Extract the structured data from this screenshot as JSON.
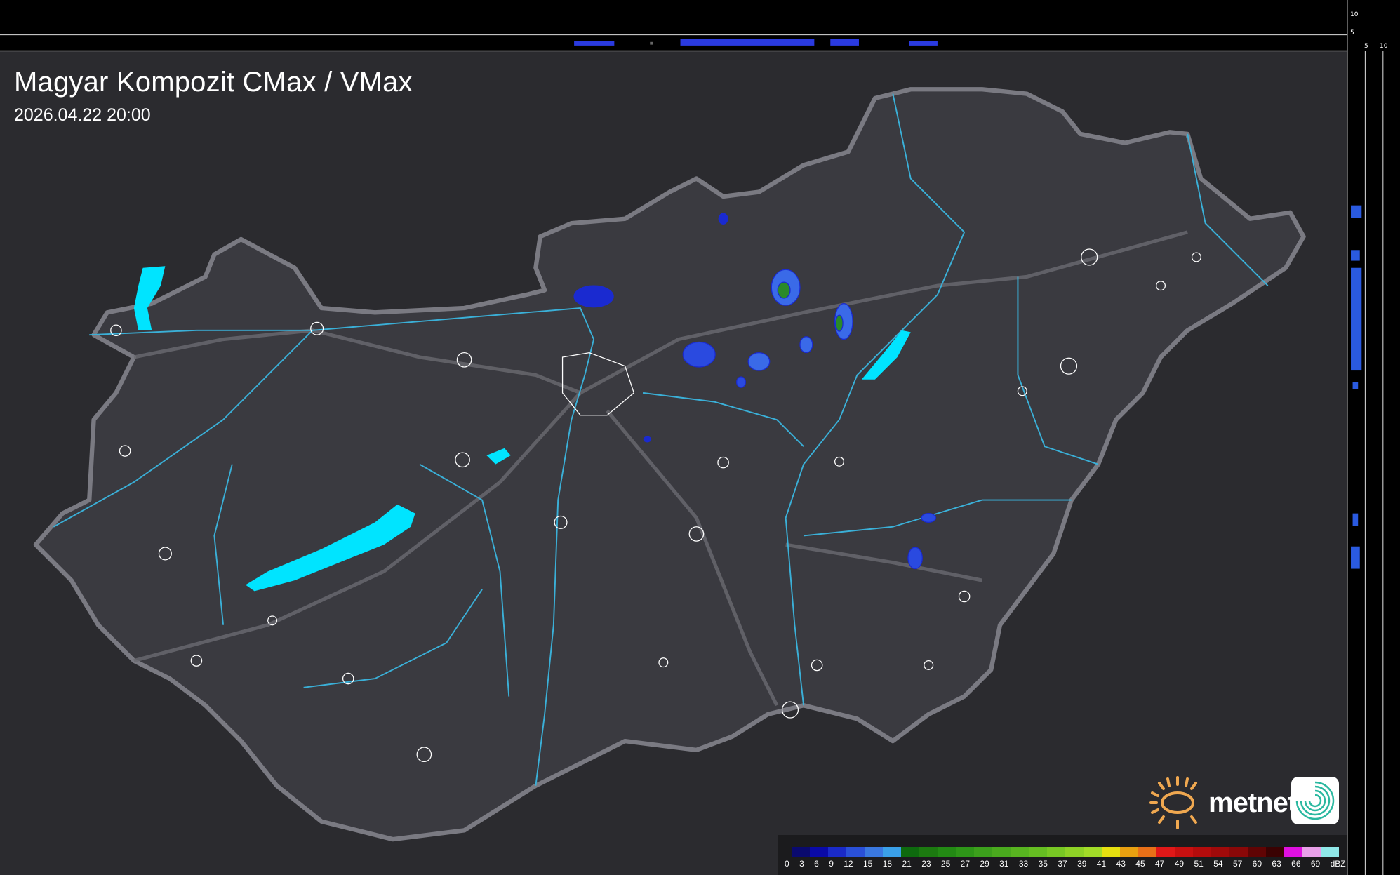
{
  "header": {
    "title": "Magyar Kompozit CMax / VMax",
    "timestamp": "2026.04.22 20:00"
  },
  "side_profiles": {
    "top_axis_labels": [
      "10",
      "5"
    ],
    "right_axis_labels": [
      "5",
      "10"
    ]
  },
  "legend": {
    "unit": "dBZ",
    "labels": [
      "0",
      "3",
      "6",
      "9",
      "12",
      "15",
      "18",
      "21",
      "23",
      "25",
      "27",
      "29",
      "31",
      "33",
      "35",
      "37",
      "39",
      "41",
      "43",
      "45",
      "47",
      "49",
      "51",
      "54",
      "57",
      "60",
      "63",
      "66",
      "69"
    ],
    "colors": [
      "#0a0a6e",
      "#0a0aa8",
      "#1a2ac8",
      "#2a50d8",
      "#3a78e0",
      "#3aa0e8",
      "#0e6a0e",
      "#1c7a10",
      "#238a14",
      "#2e9618",
      "#3ca01c",
      "#4aaa1e",
      "#58b420",
      "#66be22",
      "#78c824",
      "#8ed226",
      "#a2dc28",
      "#e6e010",
      "#e8a010",
      "#e87018",
      "#e01818",
      "#c81010",
      "#b40c0c",
      "#a00a0a",
      "#8a0808",
      "#600404",
      "#3a0202",
      "#e010e0",
      "#e8a0e8",
      "#90e8e8"
    ]
  },
  "branding": {
    "logo_text": "metnet",
    "logo_color": "#f0a850",
    "app_icon": "swirl-icon"
  },
  "colors": {
    "background": "#2a2a2e",
    "country_fill": "#3a3a40",
    "border": "#7a7a80",
    "river": "#3ab0d8",
    "lake": "#00e0ff",
    "radar_low": "#1a2ad0"
  }
}
